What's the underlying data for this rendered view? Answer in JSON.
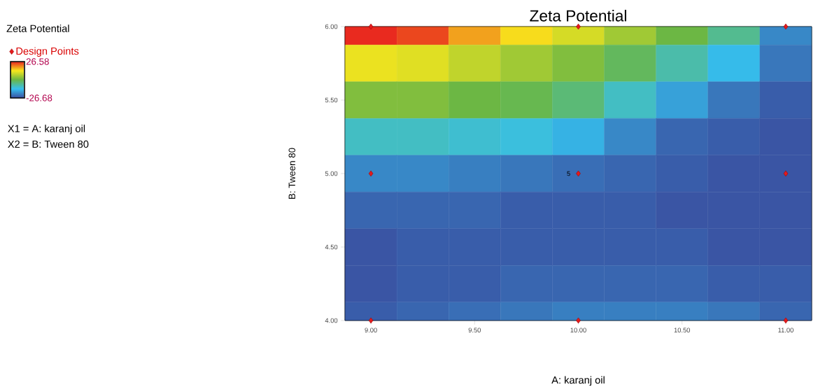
{
  "chart_data": {
    "type": "heatmap",
    "title": "Zeta Potential",
    "xlabel": "A: karanj oil",
    "ylabel": "B: Tween 80",
    "clabel": "Zeta Potential",
    "categories": [
      "9.00",
      null,
      "9.50",
      null,
      "10.00",
      null,
      "10.50",
      null,
      "11.00"
    ],
    "ylim": [
      4,
      6
    ],
    "yticks": [
      {
        "value": 4,
        "label": "4.00"
      },
      {
        "value": 4.5,
        "label": "4.50"
      },
      {
        "value": 5,
        "label": "5.00"
      },
      {
        "value": 5.5,
        "label": "5.50"
      },
      {
        "value": 6,
        "label": "6.00"
      }
    ],
    "cells": [
      [
        26,
        24,
        18,
        14,
        10,
        5,
        0,
        -6,
        -20
      ],
      [
        12,
        11,
        8,
        5,
        2,
        -2,
        -8,
        -14,
        -22
      ],
      [
        2,
        2,
        0,
        -1,
        -4,
        -10,
        -17,
        -22,
        -25
      ],
      [
        -10,
        -10,
        -11,
        -12,
        -15,
        -20,
        -24,
        -25,
        -26
      ],
      [
        -20,
        -20,
        -21,
        -22,
        -23,
        -24,
        -25,
        -26,
        -26
      ],
      [
        -24,
        -24,
        -24,
        -25,
        -25,
        -25,
        -26,
        -26,
        -26
      ],
      [
        -26,
        -25,
        -25,
        -25,
        -25,
        -25,
        -25,
        -26,
        -26
      ],
      [
        -26,
        -25,
        -25,
        -24,
        -24,
        -24,
        -24,
        -25,
        -25
      ],
      [
        -25,
        -24,
        -23,
        -22,
        -21,
        -21,
        -21,
        -22,
        -24
      ]
    ],
    "clim": [
      -26.68,
      26.58
    ],
    "cticks": [
      {
        "value": -26.68,
        "label": "-26.68"
      },
      {
        "value": 26.58,
        "label": "26.58"
      }
    ],
    "series": [
      {
        "type": "scatter",
        "name": "Design Points",
        "color": "#e41a1c",
        "x": [
          "9.00",
          "10.00",
          "11.00",
          "9.00",
          "10.00",
          "11.00",
          "9.00",
          "10.00",
          "11.00"
        ],
        "values": [
          6,
          6,
          6,
          5,
          5,
          5,
          4,
          4,
          4
        ]
      }
    ],
    "marker": "diamond",
    "legend": "left",
    "annotations": [
      "X1 = A: karanj oil",
      "X2 = B: Tween 80",
      {
        "text": "5",
        "x": "10.00",
        "y": 5
      }
    ]
  }
}
